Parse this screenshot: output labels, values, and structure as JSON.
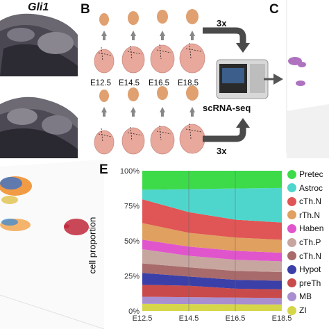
{
  "panels": {
    "a_gene": "Gli1",
    "b": "B",
    "c": "C",
    "e": "E"
  },
  "panel_b": {
    "stages": [
      "E12.5",
      "E14.5",
      "E16.5",
      "E18.5"
    ],
    "replicates_top": "3x",
    "replicates_bottom": "3x",
    "method": "scRNA-seq"
  },
  "chart_data": {
    "type": "area",
    "stacked": true,
    "normalized": true,
    "x": [
      "E12.5",
      "E14.5",
      "E16.5",
      "E18.5"
    ],
    "ylabel": "cell proportion",
    "xlabel": "",
    "ylim": [
      0,
      100
    ],
    "yticks": [
      "0%",
      "25%",
      "50%",
      "75%",
      "100%"
    ],
    "grid": false,
    "legend_position": "right",
    "series": [
      {
        "name": "ZI",
        "color": "#d6d64a",
        "values": [
          3,
          3,
          3,
          3
        ]
      },
      {
        "name": "MB",
        "color": "#a98fd0",
        "values": [
          3,
          3,
          3,
          3
        ]
      },
      {
        "name": "preTh",
        "color": "#c94a4a",
        "values": [
          5,
          5,
          4,
          4
        ]
      },
      {
        "name": "Hypot",
        "color": "#3b3fa8",
        "values": [
          5,
          4,
          4,
          4
        ]
      },
      {
        "name": "cTh.N",
        "color": "#a86a6a",
        "values": [
          4,
          4,
          4,
          4
        ]
      },
      {
        "name": "cTh.P",
        "color": "#c7a6a0",
        "values": [
          6,
          5,
          5,
          5
        ]
      },
      {
        "name": "Haben",
        "color": "#e055cc",
        "values": [
          4,
          4,
          4,
          4
        ]
      },
      {
        "name": "rTh.N",
        "color": "#e0a060",
        "values": [
          7,
          6,
          6,
          6
        ]
      },
      {
        "name": "cTh.N",
        "color": "#e05555",
        "values": [
          10,
          9,
          8,
          8
        ]
      },
      {
        "name": "Astroc",
        "color": "#4fd6cc",
        "values": [
          4,
          10,
          14,
          16
        ]
      },
      {
        "name": "Pretec",
        "color": "#3ddb4a",
        "values": [
          8,
          8,
          8,
          8
        ]
      }
    ]
  }
}
